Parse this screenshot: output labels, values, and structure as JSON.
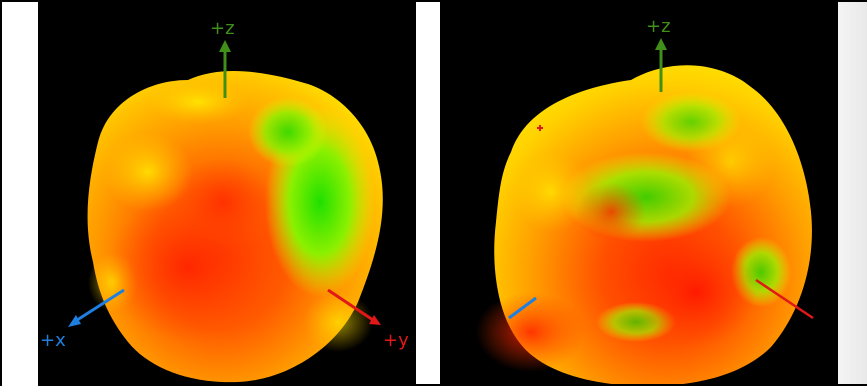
{
  "panels": [
    {
      "axes": {
        "z": {
          "label": "+z",
          "color": "#3f8f1a"
        },
        "x": {
          "label": "+x",
          "color": "#1e7fe0"
        },
        "y": {
          "label": "+y",
          "color": "#e01818"
        }
      }
    },
    {
      "axes": {
        "z": {
          "label": "+z",
          "color": "#3f8f1a"
        }
      }
    }
  ],
  "colors": {
    "background": "#000000",
    "surface_hot": "#ff2a00",
    "surface_mid": "#ff9f00",
    "surface_warm": "#ffe600",
    "surface_cool": "#22e000"
  }
}
